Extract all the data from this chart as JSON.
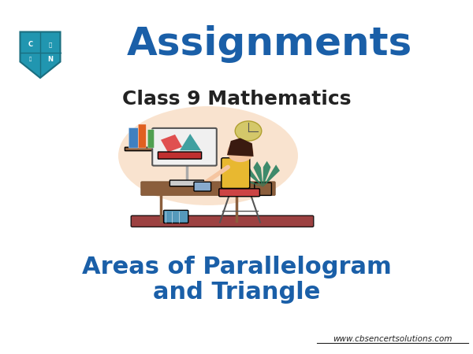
{
  "bg_color": "#ffffff",
  "title_text": "Assignments",
  "title_color": "#1a5fa8",
  "subtitle_text": "Class 9 Mathematics",
  "subtitle_color": "#222222",
  "topic_line1": "Areas of Parallelogram",
  "topic_line2": "and Triangle",
  "topic_color": "#1a5fa8",
  "website_text": "www.cbsencertsolutions.com",
  "website_color": "#222222",
  "shield_color": "#2196b0",
  "shield_border_color": "#1a6e80"
}
